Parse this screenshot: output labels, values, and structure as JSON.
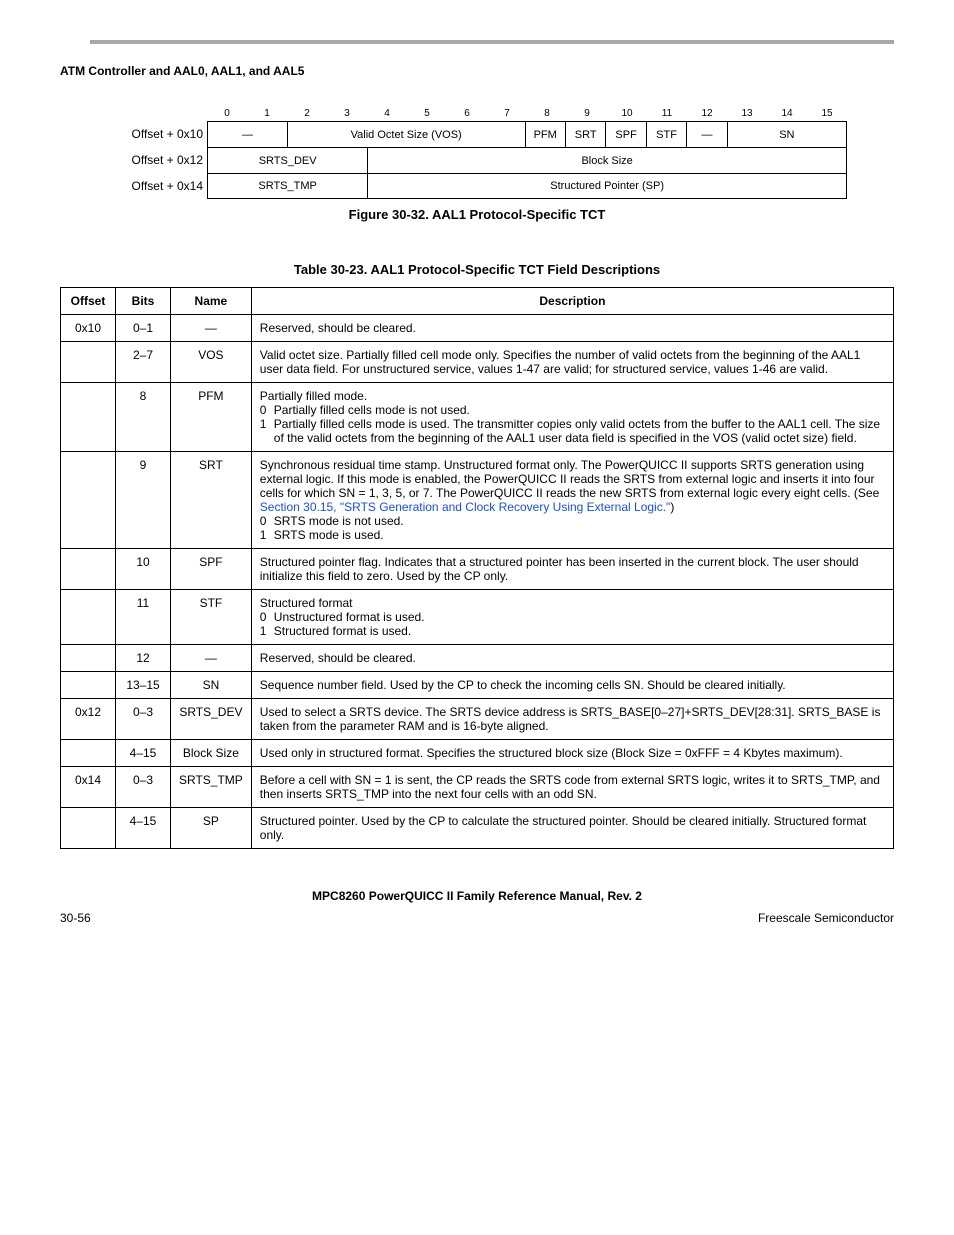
{
  "section_header": "ATM Controller and AAL0, AAL1, and AAL5",
  "bitfield": {
    "bits": [
      "0",
      "1",
      "2",
      "3",
      "4",
      "5",
      "6",
      "7",
      "8",
      "9",
      "10",
      "11",
      "12",
      "13",
      "14",
      "15"
    ],
    "rows": [
      {
        "label": "Offset + 0x10",
        "cells": [
          {
            "span": 2,
            "text": "—"
          },
          {
            "span": 6,
            "text": "Valid Octet Size (VOS)"
          },
          {
            "span": 1,
            "text": "PFM"
          },
          {
            "span": 1,
            "text": "SRT"
          },
          {
            "span": 1,
            "text": "SPF"
          },
          {
            "span": 1,
            "text": "STF"
          },
          {
            "span": 1,
            "text": "—"
          },
          {
            "span": 3,
            "text": "SN"
          }
        ]
      },
      {
        "label": "Offset + 0x12",
        "cells": [
          {
            "span": 4,
            "text": "SRTS_DEV"
          },
          {
            "span": 12,
            "text": "Block Size"
          }
        ]
      },
      {
        "label": "Offset + 0x14",
        "cells": [
          {
            "span": 4,
            "text": "SRTS_TMP"
          },
          {
            "span": 12,
            "text": "Structured Pointer (SP)"
          }
        ]
      }
    ]
  },
  "figure_caption": "Figure 30-32. AAL1 Protocol-Specific TCT",
  "table_caption": "Table 30-23. AAL1 Protocol-Specific TCT Field Descriptions",
  "table": {
    "headers": [
      "Offset",
      "Bits",
      "Name",
      "Description"
    ],
    "rows": [
      {
        "offset": "0x10",
        "bits": "0–1",
        "name": "—",
        "desc_plain": "Reserved, should be cleared."
      },
      {
        "offset": "",
        "bits": "2–7",
        "name": "VOS",
        "desc_plain": "Valid octet size. Partially filled cell mode only. Specifies the number of valid octets from the beginning of the AAL1 user data field. For unstructured service, values 1-47 are valid; for structured service, values 1-46 are valid."
      },
      {
        "offset": "",
        "bits": "8",
        "name": "PFM",
        "desc_list": {
          "lead": "Partially filled mode.",
          "items": [
            {
              "k": "0",
              "t": "Partially filled cells mode is not used."
            },
            {
              "k": "1",
              "t": "Partially filled cells mode is used. The transmitter copies only valid octets from the buffer to the AAL1 cell. The size of the valid octets from the beginning of the AAL1 user data field is specified in the VOS (valid octet size) field."
            }
          ]
        }
      },
      {
        "offset": "",
        "bits": "9",
        "name": "SRT",
        "desc_srt": {
          "pre": "Synchronous residual time stamp. Unstructured format only. The PowerQUICC II supports SRTS generation using external logic. If this mode is enabled, the PowerQUICC II reads the SRTS from external logic and inserts it into four cells for which SN = 1, 3, 5, or 7. The PowerQUICC II reads the new SRTS from external logic every eight cells. (See ",
          "link": "Section 30.15, \"SRTS Generation and Clock Recovery Using External Logic.\"",
          "post": ")",
          "items": [
            {
              "k": "0",
              "t": "SRTS mode is not used."
            },
            {
              "k": "1",
              "t": "SRTS mode is used."
            }
          ]
        }
      },
      {
        "offset": "",
        "bits": "10",
        "name": "SPF",
        "desc_plain": "Structured pointer flag. Indicates that a structured pointer has been inserted in the current block. The user should initialize this field to zero. Used by the CP only."
      },
      {
        "offset": "",
        "bits": "11",
        "name": "STF",
        "desc_list": {
          "lead": "Structured format",
          "items": [
            {
              "k": "0",
              "t": "Unstructured format is used."
            },
            {
              "k": "1",
              "t": "Structured format is used."
            }
          ]
        }
      },
      {
        "offset": "",
        "bits": "12",
        "name": "—",
        "desc_plain": "Reserved, should be cleared."
      },
      {
        "offset": "",
        "bits": "13–15",
        "name": "SN",
        "desc_plain": "Sequence number field. Used by the CP to check the incoming cells SN. Should be cleared initially."
      },
      {
        "offset": "0x12",
        "bits": "0–3",
        "name": "SRTS_DEV",
        "desc_plain": "Used to select a SRTS device. The SRTS device address is SRTS_BASE[0–27]+SRTS_DEV[28:31]. SRTS_BASE is taken from the parameter RAM and is 16-byte aligned."
      },
      {
        "offset": "",
        "bits": "4–15",
        "name": "Block Size",
        "desc_plain": "Used only in structured format. Specifies the structured block size (Block Size = 0xFFF = 4 Kbytes maximum)."
      },
      {
        "offset": "0x14",
        "bits": "0–3",
        "name": "SRTS_TMP",
        "desc_plain": "Before a cell with SN = 1 is sent, the CP reads the SRTS code from external SRTS logic, writes it to SRTS_TMP, and then inserts SRTS_TMP into the next four cells with an odd SN."
      },
      {
        "offset": "",
        "bits": "4–15",
        "name": "SP",
        "desc_plain": "Structured pointer. Used by the CP to calculate the structured pointer. Should be cleared initially. Structured format only."
      }
    ]
  },
  "footer_title": "MPC8260 PowerQUICC II Family Reference Manual, Rev. 2",
  "page_number": "30-56",
  "vendor": "Freescale Semiconductor"
}
